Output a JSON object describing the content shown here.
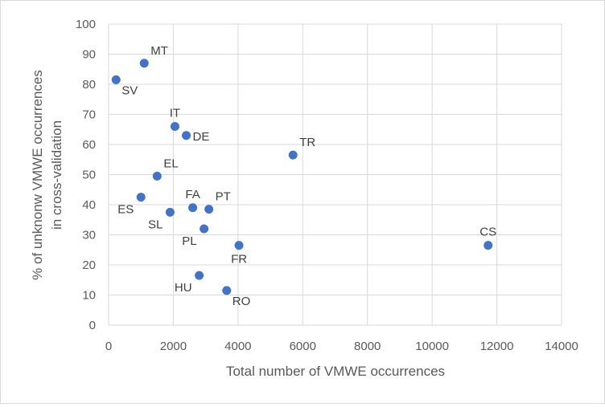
{
  "chart_data": {
    "type": "scatter",
    "title": "",
    "xlabel": "Total number of VMWE occurrences",
    "ylabel_lines": [
      "% of unknonw VMWE occurrences",
      "in cross-validation"
    ],
    "xlim": [
      0,
      14000
    ],
    "ylim": [
      0,
      100
    ],
    "xticks": [
      0,
      2000,
      4000,
      6000,
      8000,
      10000,
      12000,
      14000
    ],
    "yticks": [
      0,
      10,
      20,
      30,
      40,
      50,
      60,
      70,
      80,
      90,
      100
    ],
    "grid": true,
    "marker_color": "#4472c4",
    "points": [
      {
        "label": "MT",
        "x": 1100,
        "y": 87,
        "label_pos": "above-right"
      },
      {
        "label": "SV",
        "x": 230,
        "y": 81.5,
        "label_pos": "below-right"
      },
      {
        "label": "IT",
        "x": 2050,
        "y": 66,
        "label_pos": "above"
      },
      {
        "label": "DE",
        "x": 2400,
        "y": 63,
        "label_pos": "right"
      },
      {
        "label": "TR",
        "x": 5700,
        "y": 56.5,
        "label_pos": "above-right"
      },
      {
        "label": "EL",
        "x": 1500,
        "y": 49.5,
        "label_pos": "above-right"
      },
      {
        "label": "ES",
        "x": 1000,
        "y": 42.5,
        "label_pos": "below-left"
      },
      {
        "label": "FA",
        "x": 2600,
        "y": 39,
        "label_pos": "above"
      },
      {
        "label": "PT",
        "x": 3100,
        "y": 38.5,
        "label_pos": "above-right"
      },
      {
        "label": "SL",
        "x": 1900,
        "y": 37.5,
        "label_pos": "below-left"
      },
      {
        "label": "PL",
        "x": 2950,
        "y": 32,
        "label_pos": "below-left"
      },
      {
        "label": "FR",
        "x": 4030,
        "y": 26.5,
        "label_pos": "below"
      },
      {
        "label": "CS",
        "x": 11730,
        "y": 26.5,
        "label_pos": "above"
      },
      {
        "label": "HU",
        "x": 2800,
        "y": 16.5,
        "label_pos": "below-left"
      },
      {
        "label": "RO",
        "x": 3650,
        "y": 11.5,
        "label_pos": "below-right"
      }
    ]
  }
}
